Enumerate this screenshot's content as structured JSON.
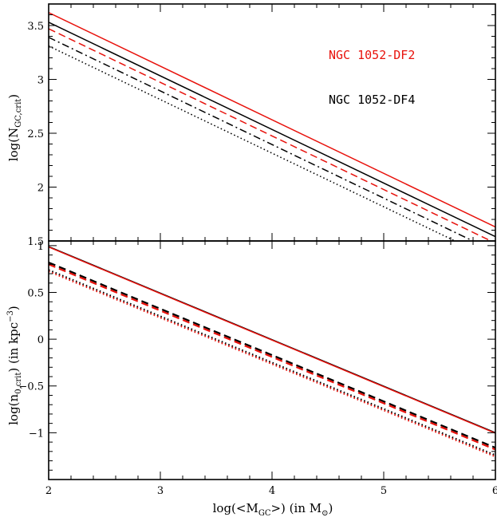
{
  "chart_data": [
    {
      "type": "line",
      "panel": "top",
      "ylabel_main": "log(N",
      "ylabel_sub": "GC,crit",
      "ylabel_end": ")",
      "xlim": [
        2,
        6
      ],
      "ylim": [
        1.5,
        3.7
      ],
      "yticks": [
        1.5,
        2,
        2.5,
        3,
        3.5
      ],
      "yticklabels": [
        "1.5",
        "2",
        "2.5",
        "3",
        "3.5"
      ],
      "legend": [
        {
          "text": "NGC 1052-DF2",
          "color": "#e8120c"
        },
        {
          "text": "NGC 1052-DF4",
          "color": "#000000"
        }
      ],
      "series": [
        {
          "color": "#e8120c",
          "style": "solid",
          "x": [
            2,
            6
          ],
          "y": [
            3.62,
            1.63
          ]
        },
        {
          "color": "#000000",
          "style": "solid",
          "x": [
            2,
            6
          ],
          "y": [
            3.53,
            1.54
          ]
        },
        {
          "color": "#e8120c",
          "style": "dashed",
          "x": [
            2,
            6
          ],
          "y": [
            3.47,
            1.48
          ]
        },
        {
          "color": "#000000",
          "style": "dashdot",
          "x": [
            2,
            6
          ],
          "y": [
            3.39,
            1.4
          ]
        },
        {
          "color": "#000000",
          "style": "dotted",
          "x": [
            2,
            6
          ],
          "y": [
            3.31,
            1.32
          ]
        }
      ]
    },
    {
      "type": "line",
      "panel": "bottom",
      "xlabel_main": "log(<M",
      "xlabel_sub": "GC",
      "xlabel_mid": ">)  (in M",
      "xlabel_sun": "⊙",
      "xlabel_end": ")",
      "ylabel_main": "log(n",
      "ylabel_sub": "0,crit",
      "ylabel_mid": ")  (in kpc",
      "ylabel_sup": "−3",
      "ylabel_end": ")",
      "xlim": [
        2,
        6
      ],
      "ylim": [
        -1.5,
        1.05
      ],
      "xticks": [
        2,
        3,
        4,
        5,
        6
      ],
      "xticklabels": [
        "2",
        "3",
        "4",
        "5",
        "6"
      ],
      "yticks": [
        -1,
        -0.5,
        0,
        0.5,
        1
      ],
      "yticklabels": [
        "−1",
        "−0.5",
        "0",
        "0.5",
        "1"
      ],
      "series": [
        {
          "color": "#000000",
          "style": "solid",
          "x": [
            2,
            6
          ],
          "y": [
            0.99,
            -1.0
          ]
        },
        {
          "color": "#e8120c",
          "style": "solid",
          "x": [
            2,
            6
          ],
          "y": [
            0.985,
            -1.005
          ]
        },
        {
          "color": "#000000",
          "style": "dashed",
          "x": [
            2,
            6
          ],
          "y": [
            0.82,
            -1.16
          ]
        },
        {
          "color": "#e8120c",
          "style": "dashed",
          "x": [
            2,
            6
          ],
          "y": [
            0.8,
            -1.18
          ]
        },
        {
          "color": "#000000",
          "style": "dotted",
          "x": [
            2,
            6
          ],
          "y": [
            0.74,
            -1.24
          ]
        },
        {
          "color": "#e8120c",
          "style": "dotted",
          "x": [
            2,
            6
          ],
          "y": [
            0.725,
            -1.255
          ]
        }
      ]
    }
  ]
}
